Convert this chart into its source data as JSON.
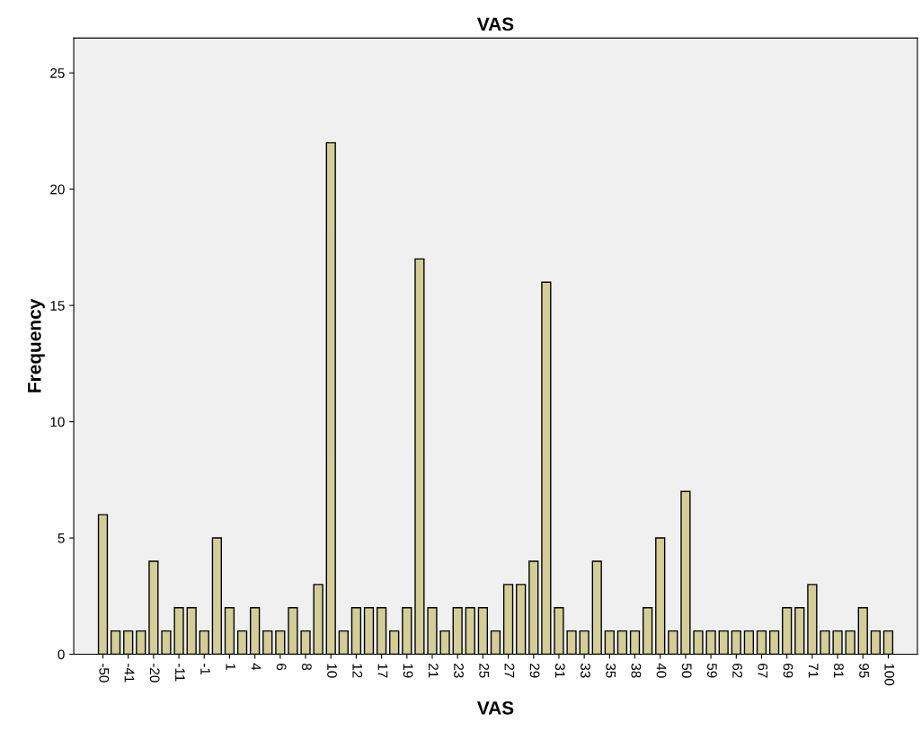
{
  "chart_data": {
    "type": "bar",
    "title": "VAS",
    "xlabel": "VAS",
    "ylabel": "Frequency",
    "categories": [
      "-50",
      null,
      "-41",
      null,
      "-20",
      null,
      "-11",
      null,
      "-1",
      null,
      "1",
      null,
      "4",
      null,
      "6",
      null,
      "8",
      null,
      "10",
      null,
      "12",
      null,
      "17",
      null,
      "19",
      null,
      "21",
      null,
      "23",
      null,
      "25",
      null,
      "27",
      null,
      "29",
      null,
      "31",
      null,
      "33",
      null,
      "35",
      null,
      "38",
      null,
      "40",
      null,
      "50",
      null,
      "59",
      null,
      "62",
      null,
      "67",
      null,
      "69",
      null,
      "71",
      null,
      "81",
      null,
      "95",
      null,
      "100"
    ],
    "values": [
      6,
      1,
      1,
      1,
      4,
      1,
      2,
      2,
      1,
      5,
      2,
      1,
      2,
      1,
      1,
      2,
      1,
      3,
      22,
      1,
      2,
      2,
      2,
      1,
      2,
      17,
      2,
      1,
      2,
      2,
      2,
      1,
      3,
      3,
      4,
      16,
      2,
      1,
      1,
      4,
      1,
      1,
      1,
      2,
      5,
      1,
      7,
      1,
      1,
      1,
      1,
      1,
      1,
      1,
      2,
      2,
      3,
      1,
      1,
      1,
      2,
      1,
      1
    ],
    "color": "#d3ce97",
    "ylim": [
      0,
      26.5
    ],
    "yticks": [
      0,
      5,
      10,
      15,
      20,
      25
    ],
    "grid": false,
    "legend": false
  }
}
